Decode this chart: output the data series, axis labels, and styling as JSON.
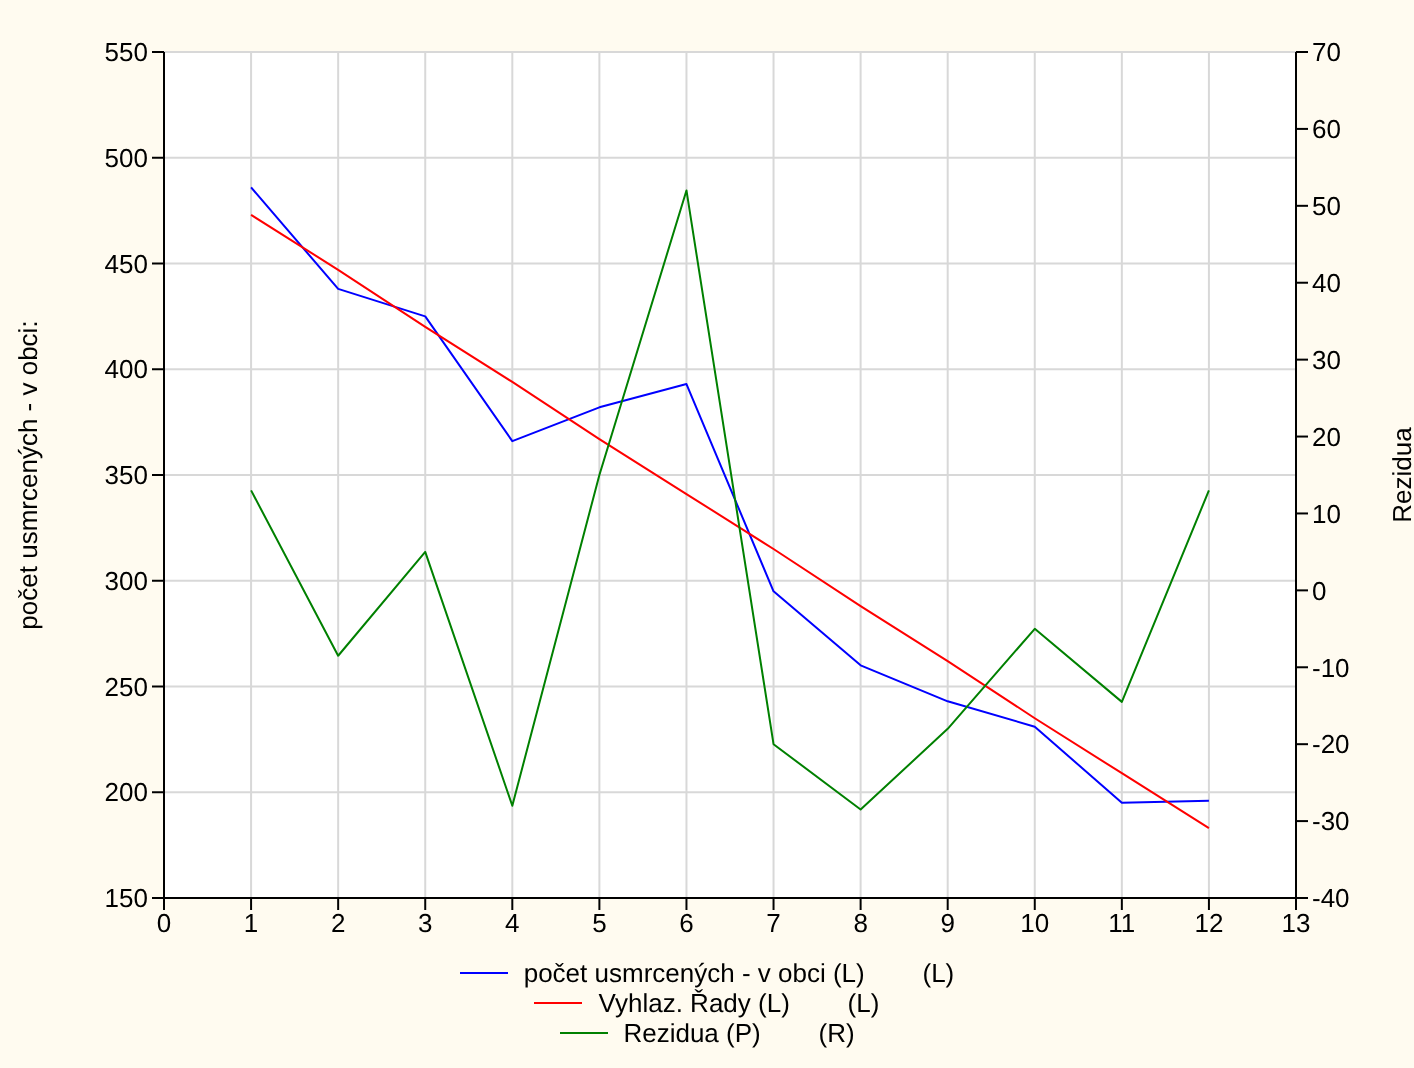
{
  "chart_data": {
    "type": "line",
    "x": [
      1,
      2,
      3,
      4,
      5,
      6,
      7,
      8,
      9,
      10,
      11,
      12
    ],
    "ylabel": "počet usmrcených - v obci:",
    "y2label": "Rezidua",
    "xlim": [
      0,
      13
    ],
    "xticks": [
      0,
      1,
      2,
      3,
      4,
      5,
      6,
      7,
      8,
      9,
      10,
      11,
      12,
      13
    ],
    "ylim": [
      150,
      550
    ],
    "yticks": [
      150,
      200,
      250,
      300,
      350,
      400,
      450,
      500,
      550
    ],
    "y2lim": [
      -40,
      70
    ],
    "y2ticks": [
      -40,
      -30,
      -20,
      -10,
      0,
      10,
      20,
      30,
      40,
      50,
      60,
      70
    ],
    "grid": true,
    "legend": "bottom",
    "marker": "none",
    "line_style": "solid",
    "series": [
      {
        "name": "počet usmrcených - v obci (L)        (L)",
        "color": "#0000ff",
        "values": [
          486,
          438,
          425,
          366,
          382,
          393,
          295,
          260,
          243,
          231,
          195,
          196
        ]
      },
      {
        "name": "Vyhlaz. Řady (L)        (L)",
        "color": "#ff0000",
        "values": [
          473,
          447,
          420,
          394,
          367,
          341,
          315,
          288,
          262,
          235,
          209,
          183
        ]
      },
      {
        "name": "Rezidua (P)        (R)",
        "color": "#008000",
        "axis": "y2",
        "values": [
          13,
          -8.5,
          5,
          -28,
          15,
          52,
          -20,
          -28.5,
          -18,
          -5,
          -14.5,
          13
        ]
      }
    ]
  }
}
